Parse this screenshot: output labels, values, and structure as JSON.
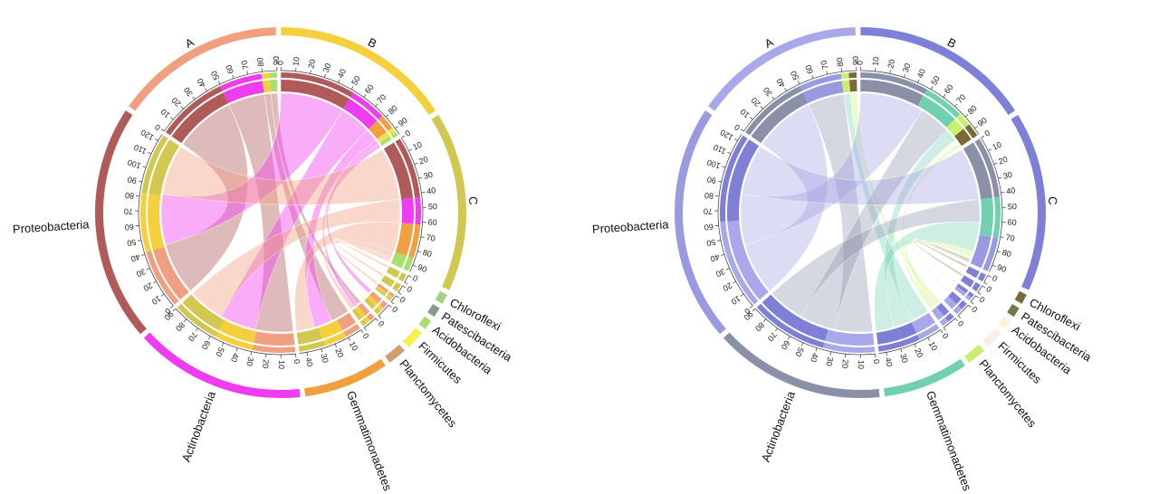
{
  "panels": [
    {
      "id": "left",
      "sectors": [
        {
          "label": "A",
          "max": 90,
          "tick_step": 10,
          "outer": "#f0a080",
          "inner": "#b05a5a",
          "pieces": [
            [
              "#b05a5a",
              0.55
            ],
            [
              "#f03cf0",
              0.33
            ],
            [
              "#f5cf3c",
              0.06
            ],
            [
              "#a8e070",
              0.06
            ]
          ]
        },
        {
          "label": "B",
          "max": 95,
          "tick_step": 10,
          "outer": "#f5cf3c",
          "inner": "#b05a5a",
          "pieces": [
            [
              "#b05a5a",
              0.55
            ],
            [
              "#f03cf0",
              0.27
            ],
            [
              "#f0a040",
              0.11
            ],
            [
              "#f5e050",
              0.04
            ],
            [
              "#a8e070",
              0.03
            ]
          ]
        },
        {
          "label": "C",
          "max": 95,
          "tick_step": 10,
          "outer": "#d0c850",
          "inner": "#b05a5a",
          "pieces": [
            [
              "#b05a5a",
              0.45
            ],
            [
              "#f03cf0",
              0.2
            ],
            [
              "#f0a040",
              0.25
            ],
            [
              "#a8e070",
              0.1
            ]
          ]
        },
        {
          "label": "Chloroflexi",
          "max": 1,
          "tick_step": 1,
          "outer": "#a8d080",
          "inner": "#d0c850",
          "pieces": [
            [
              "#d0c850",
              1.0
            ]
          ]
        },
        {
          "label": "Patescibacteria",
          "max": 2,
          "tick_step": 2,
          "outer": "#8a9a8a",
          "inner": "#d0c850",
          "pieces": [
            [
              "#d0c850",
              1.0
            ]
          ]
        },
        {
          "label": "Acidobacteria",
          "max": 4,
          "tick_step": 4,
          "outer": "#a8e070",
          "inner": "#f0a080",
          "pieces": [
            [
              "#f0a080",
              0.4
            ],
            [
              "#f5cf3c",
              0.3
            ],
            [
              "#d0c850",
              0.3
            ]
          ]
        },
        {
          "label": "Firmicutes",
          "max": 10,
          "tick_step": 10,
          "outer": "#f5f04a",
          "inner": "#f0a080",
          "pieces": [
            [
              "#f0a080",
              0.4
            ],
            [
              "#f5cf3c",
              0.3
            ],
            [
              "#d0c850",
              0.3
            ]
          ]
        },
        {
          "label": "Planctomycetes",
          "max": 10,
          "tick_step": 10,
          "outer": "#d0a070",
          "inner": "#f0a080",
          "pieces": [
            [
              "#f0a080",
              0.4
            ],
            [
              "#f5cf3c",
              0.3
            ],
            [
              "#d0c850",
              0.3
            ]
          ]
        },
        {
          "label": "Gemmatimonadetes",
          "max": 45,
          "tick_step": 10,
          "outer": "#f0a040",
          "inner": "#f5cf3c",
          "pieces": [
            [
              "#f0a080",
              0.25
            ],
            [
              "#f5cf3c",
              0.35
            ],
            [
              "#d0c850",
              0.4
            ]
          ]
        },
        {
          "label": "Actinobacteria",
          "max": 90,
          "tick_step": 10,
          "outer": "#f03cf0",
          "inner": "#f5cf3c",
          "pieces": [
            [
              "#f0a080",
              0.33
            ],
            [
              "#f5cf3c",
              0.3
            ],
            [
              "#d0c850",
              0.37
            ]
          ]
        },
        {
          "label": "Proteobacteria",
          "max": 125,
          "tick_step": 10,
          "outer": "#b05a5a",
          "inner": "#f0a080",
          "pieces": [
            [
              "#f0a080",
              0.33
            ],
            [
              "#f5cf3c",
              0.33
            ],
            [
              "#d0c850",
              0.34
            ]
          ]
        }
      ]
    },
    {
      "id": "right",
      "sectors": [
        {
          "label": "A",
          "max": 90,
          "tick_step": 10,
          "outer": "#a8a8ea",
          "inner": "#8a90a8",
          "pieces": [
            [
              "#8a90a8",
              0.55
            ],
            [
              "#9a9ae0",
              0.33
            ],
            [
              "#c8f070",
              0.06
            ],
            [
              "#7a6a3a",
              0.06
            ]
          ]
        },
        {
          "label": "B",
          "max": 95,
          "tick_step": 10,
          "outer": "#7e80d8",
          "inner": "#8a90a8",
          "pieces": [
            [
              "#8a90a8",
              0.5
            ],
            [
              "#70d0b0",
              0.3
            ],
            [
              "#c8f070",
              0.1
            ],
            [
              "#7a6a3a",
              0.1
            ]
          ]
        },
        {
          "label": "C",
          "max": 95,
          "tick_step": 10,
          "outer": "#7e80d8",
          "inner": "#8a90a8",
          "pieces": [
            [
              "#8a90a8",
              0.45
            ],
            [
              "#70d0b0",
              0.3
            ],
            [
              "#9a9ae0",
              0.25
            ]
          ]
        },
        {
          "label": "Chloroflexi",
          "max": 1,
          "tick_step": 1,
          "outer": "#7a6a3a",
          "inner": "#7e80d8",
          "pieces": [
            [
              "#7e80d8",
              1.0
            ]
          ]
        },
        {
          "label": "Patescibacteria",
          "max": 2,
          "tick_step": 2,
          "outer": "#6a7a4a",
          "inner": "#7e80d8",
          "pieces": [
            [
              "#7e80d8",
              1.0
            ]
          ]
        },
        {
          "label": "Acidobacteria",
          "max": 4,
          "tick_step": 4,
          "outer": "#faf2d8",
          "inner": "#7e80d8",
          "pieces": [
            [
              "#7e80d8",
              0.5
            ],
            [
              "#a8a8ea",
              0.5
            ]
          ]
        },
        {
          "label": "Firmicutes",
          "max": 10,
          "tick_step": 10,
          "outer": "#f8f0e4",
          "inner": "#7e80d8",
          "pieces": [
            [
              "#7e80d8",
              0.5
            ],
            [
              "#a8a8ea",
              0.5
            ]
          ]
        },
        {
          "label": "Planctomycetes",
          "max": 10,
          "tick_step": 10,
          "outer": "#c8f070",
          "inner": "#7e80d8",
          "pieces": [
            [
              "#7e80d8",
              0.5
            ],
            [
              "#a8a8ea",
              0.5
            ]
          ]
        },
        {
          "label": "Gemmatimonadetes",
          "max": 45,
          "tick_step": 10,
          "outer": "#70d0b0",
          "inner": "#7e80d8",
          "pieces": [
            [
              "#a8a8ea",
              0.35
            ],
            [
              "#7e80d8",
              0.65
            ]
          ]
        },
        {
          "label": "Actinobacteria",
          "max": 90,
          "tick_step": 10,
          "outer": "#8a90a8",
          "inner": "#7e80d8",
          "pieces": [
            [
              "#a8a8ea",
              0.4
            ],
            [
              "#7e80d8",
              0.6
            ]
          ]
        },
        {
          "label": "Proteobacteria",
          "max": 125,
          "tick_step": 10,
          "outer": "#9a9ae0",
          "inner": "#a8a8ea",
          "pieces": [
            [
              "#a8a8ea",
              0.5
            ],
            [
              "#7e80d8",
              0.5
            ]
          ]
        }
      ]
    }
  ],
  "links": [
    [
      "A",
      "Proteobacteria",
      0.55
    ],
    [
      "A",
      "Actinobacteria",
      0.33
    ],
    [
      "A",
      "Gemmatimonadetes",
      0.06
    ],
    [
      "A",
      "Planctomycetes",
      0.06
    ],
    [
      "B",
      "Proteobacteria",
      0.55
    ],
    [
      "B",
      "Actinobacteria",
      0.27
    ],
    [
      "B",
      "Gemmatimonadetes",
      0.11
    ],
    [
      "B",
      "Firmicutes",
      0.04
    ],
    [
      "B",
      "Planctomycetes",
      0.03
    ],
    [
      "C",
      "Proteobacteria",
      0.45
    ],
    [
      "C",
      "Actinobacteria",
      0.2
    ],
    [
      "C",
      "Gemmatimonadetes",
      0.25
    ],
    [
      "C",
      "Planctomycetes",
      0.05
    ],
    [
      "C",
      "Acidobacteria",
      0.02
    ],
    [
      "C",
      "Patescibacteria",
      0.02
    ],
    [
      "C",
      "Chloroflexi",
      0.01
    ]
  ]
}
